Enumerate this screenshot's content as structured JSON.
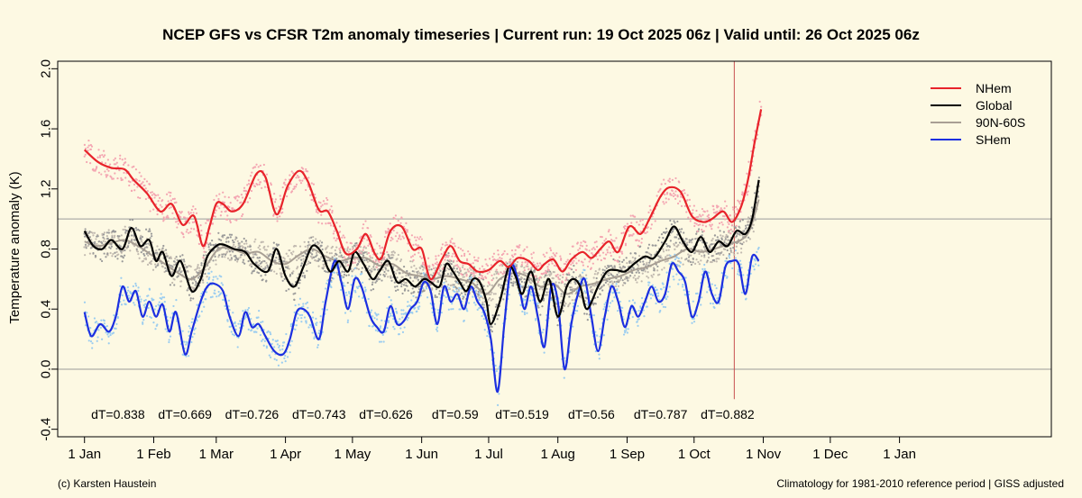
{
  "chart_data": {
    "type": "line",
    "title": "NCEP GFS vs CFSR T2m anomaly timeseries | Current run: 19 Oct 2025 06z | Valid until: 26 Oct 2025 06z",
    "xlabel": "",
    "ylabel": "Temperature anomaly (K)",
    "ylim": [
      -0.45,
      2.05
    ],
    "yticks": [
      -0.4,
      0.0,
      0.4,
      0.8,
      1.2,
      1.6,
      2.0
    ],
    "ytick_labels": [
      "-0.4",
      "0.0",
      "0.4",
      "0.8",
      "1.2",
      "1.6",
      "2.0"
    ],
    "xlim": [
      -12,
      433
    ],
    "xticks": [
      0,
      31,
      59,
      90,
      120,
      151,
      181,
      212,
      243,
      273,
      304,
      334,
      365
    ],
    "xtick_labels": [
      "1 Jan",
      "1 Feb",
      "1 Mar",
      "1 Apr",
      "1 May",
      "1 Jun",
      "1 Jul",
      "1 Aug",
      "1 Sep",
      "1 Oct",
      "1 Nov",
      "1 Dec",
      "1 Jan"
    ],
    "grid": true,
    "hgrid_at": [
      0.0,
      1.0
    ],
    "vline_at": 291,
    "legend_position": "top-right",
    "series": [
      {
        "name": "NHem",
        "color": "#e8232a",
        "dot_color": "#f4a6b2",
        "x": [
          0,
          6,
          12,
          18,
          22,
          28,
          34,
          39,
          44,
          49,
          53,
          56,
          59,
          62,
          66,
          71,
          77,
          81,
          86,
          91,
          96,
          100,
          105,
          109,
          113,
          117,
          122,
          126,
          130,
          133,
          137,
          142,
          147,
          151,
          155,
          160,
          164,
          168,
          172,
          176,
          181,
          186,
          190,
          194,
          199,
          203,
          206,
          210,
          214,
          218,
          223,
          227,
          231,
          235,
          239,
          244,
          249,
          253,
          258,
          262,
          267,
          272,
          277,
          281,
          286,
          290,
          294,
          297,
          300,
          303
        ],
        "values": [
          1.46,
          1.38,
          1.34,
          1.33,
          1.26,
          1.17,
          1.05,
          1.1,
          0.96,
          1.02,
          0.82,
          0.95,
          1.1,
          1.1,
          1.05,
          1.1,
          1.3,
          1.28,
          1.03,
          1.22,
          1.32,
          1.25,
          1.06,
          1.05,
          0.92,
          0.77,
          0.8,
          0.9,
          0.77,
          0.74,
          0.92,
          0.95,
          0.8,
          0.8,
          0.6,
          0.73,
          0.82,
          0.72,
          0.7,
          0.65,
          0.66,
          0.72,
          0.68,
          0.74,
          0.72,
          0.66,
          0.7,
          0.73,
          0.65,
          0.73,
          0.78,
          0.74,
          0.8,
          0.85,
          0.78,
          0.95,
          0.9,
          1.0,
          1.15,
          1.21,
          1.18,
          1.02,
          0.98,
          1.0,
          1.05,
          0.98,
          1.08,
          1.25,
          1.5,
          1.73
        ]
      },
      {
        "name": "Global",
        "color": "#000000",
        "dot_color": "#9a9a9a",
        "x": [
          0,
          4,
          8,
          12,
          17,
          21,
          25,
          29,
          32,
          35,
          39,
          43,
          48,
          52,
          55,
          59,
          62,
          67,
          72,
          76,
          82,
          86,
          90,
          94,
          98,
          102,
          106,
          110,
          114,
          118,
          121,
          125,
          129,
          132,
          136,
          140,
          144,
          148,
          152,
          155,
          159,
          162,
          165,
          168,
          171,
          174,
          177,
          180,
          182,
          186,
          190,
          193,
          196,
          200,
          204,
          208,
          212,
          216,
          219,
          222,
          225,
          230,
          234,
          238,
          242,
          246,
          251,
          255,
          260,
          264,
          268,
          272,
          276,
          280,
          284,
          288,
          292,
          296,
          299,
          302
        ],
        "values": [
          0.92,
          0.82,
          0.8,
          0.86,
          0.8,
          0.94,
          0.82,
          0.86,
          0.72,
          0.78,
          0.62,
          0.72,
          0.52,
          0.6,
          0.75,
          0.82,
          0.83,
          0.8,
          0.78,
          0.7,
          0.65,
          0.8,
          0.62,
          0.55,
          0.68,
          0.82,
          0.78,
          0.65,
          0.72,
          0.65,
          0.78,
          0.7,
          0.6,
          0.65,
          0.72,
          0.58,
          0.6,
          0.55,
          0.6,
          0.58,
          0.55,
          0.7,
          0.65,
          0.58,
          0.52,
          0.6,
          0.58,
          0.45,
          0.3,
          0.45,
          0.68,
          0.62,
          0.5,
          0.65,
          0.45,
          0.6,
          0.35,
          0.55,
          0.6,
          0.55,
          0.4,
          0.55,
          0.65,
          0.66,
          0.65,
          0.7,
          0.75,
          0.74,
          0.85,
          0.95,
          0.85,
          0.78,
          0.88,
          0.78,
          0.85,
          0.82,
          0.92,
          0.9,
          1.0,
          1.26
        ]
      },
      {
        "name": "90N-60S",
        "color": "#a89f94",
        "dot_color": "#c2bab0",
        "x": [
          0,
          6,
          12,
          18,
          24,
          30,
          36,
          42,
          48,
          54,
          60,
          66,
          72,
          78,
          84,
          90,
          96,
          102,
          108,
          114,
          120,
          126,
          132,
          138,
          144,
          150,
          156,
          162,
          168,
          174,
          180,
          186,
          192,
          198,
          204,
          210,
          216,
          222,
          228,
          234,
          240,
          246,
          252,
          258,
          264,
          270,
          276,
          282,
          288,
          294,
          298,
          302
        ],
        "values": [
          0.85,
          0.82,
          0.84,
          0.86,
          0.82,
          0.76,
          0.7,
          0.64,
          0.6,
          0.68,
          0.8,
          0.8,
          0.77,
          0.78,
          0.72,
          0.7,
          0.76,
          0.8,
          0.75,
          0.72,
          0.74,
          0.74,
          0.69,
          0.7,
          0.64,
          0.62,
          0.6,
          0.62,
          0.6,
          0.57,
          0.5,
          0.6,
          0.64,
          0.62,
          0.55,
          0.57,
          0.5,
          0.55,
          0.57,
          0.6,
          0.62,
          0.66,
          0.68,
          0.72,
          0.75,
          0.8,
          0.78,
          0.8,
          0.83,
          0.86,
          0.93,
          1.13
        ]
      },
      {
        "name": "SHem",
        "color": "#1c2fe0",
        "dot_color": "#9bcdf0",
        "x": [
          0,
          3,
          7,
          11,
          14,
          17,
          20,
          23,
          26,
          29,
          32,
          35,
          38,
          41,
          45,
          48,
          52,
          55,
          58,
          62,
          65,
          69,
          72,
          75,
          78,
          81,
          85,
          89,
          92,
          95,
          98,
          101,
          105,
          108,
          112,
          115,
          118,
          121,
          124,
          128,
          131,
          134,
          137,
          140,
          143,
          146,
          149,
          152,
          155,
          158,
          161,
          164,
          167,
          170,
          173,
          176,
          179,
          182,
          185,
          188,
          191,
          194,
          197,
          200,
          203,
          206,
          209,
          212,
          215,
          218,
          221,
          224,
          227,
          230,
          233,
          236,
          239,
          242,
          245,
          248,
          251,
          254,
          257,
          260,
          263,
          266,
          269,
          272,
          275,
          278,
          281,
          284,
          287,
          290,
          293,
          296,
          299,
          302
        ],
        "values": [
          0.38,
          0.22,
          0.3,
          0.25,
          0.35,
          0.55,
          0.45,
          0.52,
          0.35,
          0.45,
          0.35,
          0.43,
          0.25,
          0.38,
          0.1,
          0.25,
          0.45,
          0.55,
          0.57,
          0.52,
          0.35,
          0.22,
          0.38,
          0.28,
          0.3,
          0.22,
          0.12,
          0.1,
          0.2,
          0.38,
          0.4,
          0.35,
          0.2,
          0.45,
          0.72,
          0.58,
          0.4,
          0.6,
          0.55,
          0.35,
          0.28,
          0.25,
          0.42,
          0.3,
          0.32,
          0.4,
          0.45,
          0.58,
          0.52,
          0.3,
          0.55,
          0.45,
          0.5,
          0.4,
          0.55,
          0.45,
          0.38,
          0.2,
          -0.15,
          0.3,
          0.68,
          0.6,
          0.4,
          0.55,
          0.35,
          0.15,
          0.55,
          0.45,
          0.0,
          0.3,
          0.5,
          0.6,
          0.35,
          0.12,
          0.35,
          0.55,
          0.45,
          0.28,
          0.42,
          0.35,
          0.45,
          0.55,
          0.45,
          0.5,
          0.7,
          0.65,
          0.58,
          0.35,
          0.45,
          0.65,
          0.5,
          0.45,
          0.68,
          0.72,
          0.7,
          0.5,
          0.75,
          0.72
        ]
      }
    ],
    "annotations": [
      "dT=0.838",
      "dT=0.669",
      "dT=0.726",
      "dT=0.743",
      "dT=0.626",
      "dT=0.59",
      "dT=0.519",
      "dT=0.56",
      "dT=0.787",
      "dT=0.882"
    ],
    "annotation_x": [
      15,
      45,
      75,
      105,
      135,
      166,
      196,
      227,
      258,
      288
    ],
    "annotation_y": -0.3
  },
  "footer": {
    "left": "(c) Karsten Haustein",
    "right": "Climatology for 1981-2010 reference period | GISS adjusted"
  }
}
